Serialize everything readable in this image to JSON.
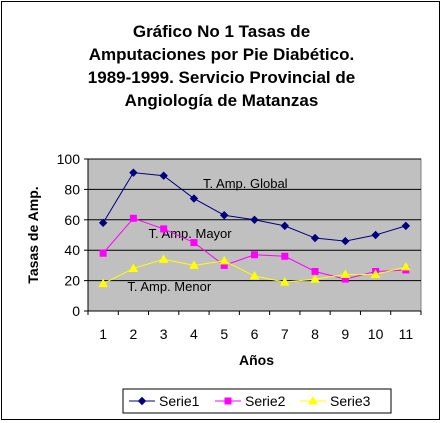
{
  "chart_data": {
    "type": "line",
    "title_lines": [
      "Gráfico No 1 Tasas de",
      "Amputaciones por Pie Diabético.",
      "1989-1999. Servicio  Provincial de",
      "Angiología de Matanzas"
    ],
    "xlabel": "Años",
    "ylabel": "Tasas de Amp.",
    "categories": [
      "1",
      "2",
      "3",
      "4",
      "5",
      "6",
      "7",
      "8",
      "9",
      "10",
      "11"
    ],
    "ylim": [
      0,
      100
    ],
    "yticks": [
      0,
      20,
      40,
      60,
      80,
      100
    ],
    "grid": true,
    "plot_background": "#c0c0c0",
    "legend_position": "bottom",
    "series": [
      {
        "name": "Serie1",
        "color": "#000080",
        "marker": "diamond",
        "values": [
          58,
          91,
          89,
          74,
          63,
          60,
          56,
          48,
          46,
          50,
          56
        ]
      },
      {
        "name": "Serie2",
        "color": "#ff00ff",
        "marker": "square",
        "values": [
          38,
          61,
          54,
          45,
          30,
          37,
          36,
          26,
          21,
          26,
          27
        ]
      },
      {
        "name": "Serie3",
        "color": "#ffff00",
        "marker": "triangle",
        "values": [
          18,
          28,
          34,
          30,
          33,
          23,
          19,
          21,
          24,
          24,
          29
        ]
      }
    ],
    "annotations": [
      {
        "text": "T. Amp. Global",
        "x": 4.3,
        "y": 81
      },
      {
        "text": "T. Amp. Mayor",
        "x": 2.5,
        "y": 48
      },
      {
        "text": "T. Amp. Menor",
        "x": 1.8,
        "y": 13
      }
    ]
  }
}
